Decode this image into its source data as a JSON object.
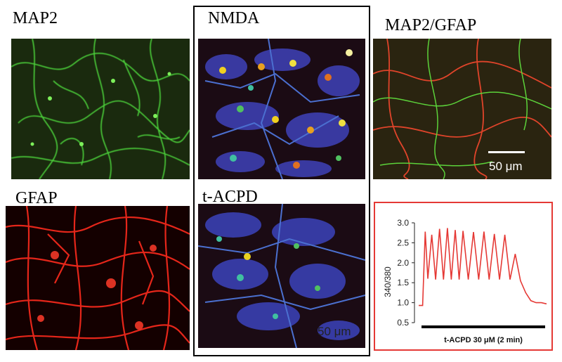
{
  "panels": {
    "map2": {
      "label": "MAP2"
    },
    "nmda": {
      "label": "NMDA"
    },
    "merge": {
      "label": "MAP2/GFAP",
      "scale_bar": "50 μm"
    },
    "gfap": {
      "label": "GFAP"
    },
    "tacpd": {
      "label": "t-ACPD",
      "scale_bar": "50 μm"
    }
  },
  "trace": {
    "ylabel": "340/380",
    "yticks": [
      "3.0",
      "2.5",
      "2.0",
      "1.5",
      "1.0",
      "0.5"
    ],
    "bar_label": "t-ACPD 30 μM (2 min)",
    "color": "#e53935"
  },
  "chart_data": {
    "type": "line",
    "ylabel": "340/380",
    "ylim": [
      0.5,
      3.0
    ],
    "annotation": "t-ACPD 30 μM (2 min)",
    "series": [
      {
        "x": [
          0,
          3,
          5,
          7,
          10,
          13,
          16,
          19,
          22,
          25,
          28,
          31,
          34,
          38,
          42,
          46,
          50,
          54,
          58,
          62,
          66,
          70,
          74,
          78,
          82,
          86,
          90,
          94,
          98
        ],
        "values": [
          0.93,
          0.93,
          2.78,
          1.6,
          2.7,
          1.58,
          2.85,
          1.58,
          2.87,
          1.58,
          2.82,
          1.58,
          2.8,
          1.58,
          2.77,
          1.58,
          2.78,
          1.58,
          2.72,
          1.58,
          2.7,
          1.58,
          2.22,
          1.55,
          1.25,
          1.05,
          1.0,
          1.0,
          0.97
        ]
      }
    ]
  }
}
